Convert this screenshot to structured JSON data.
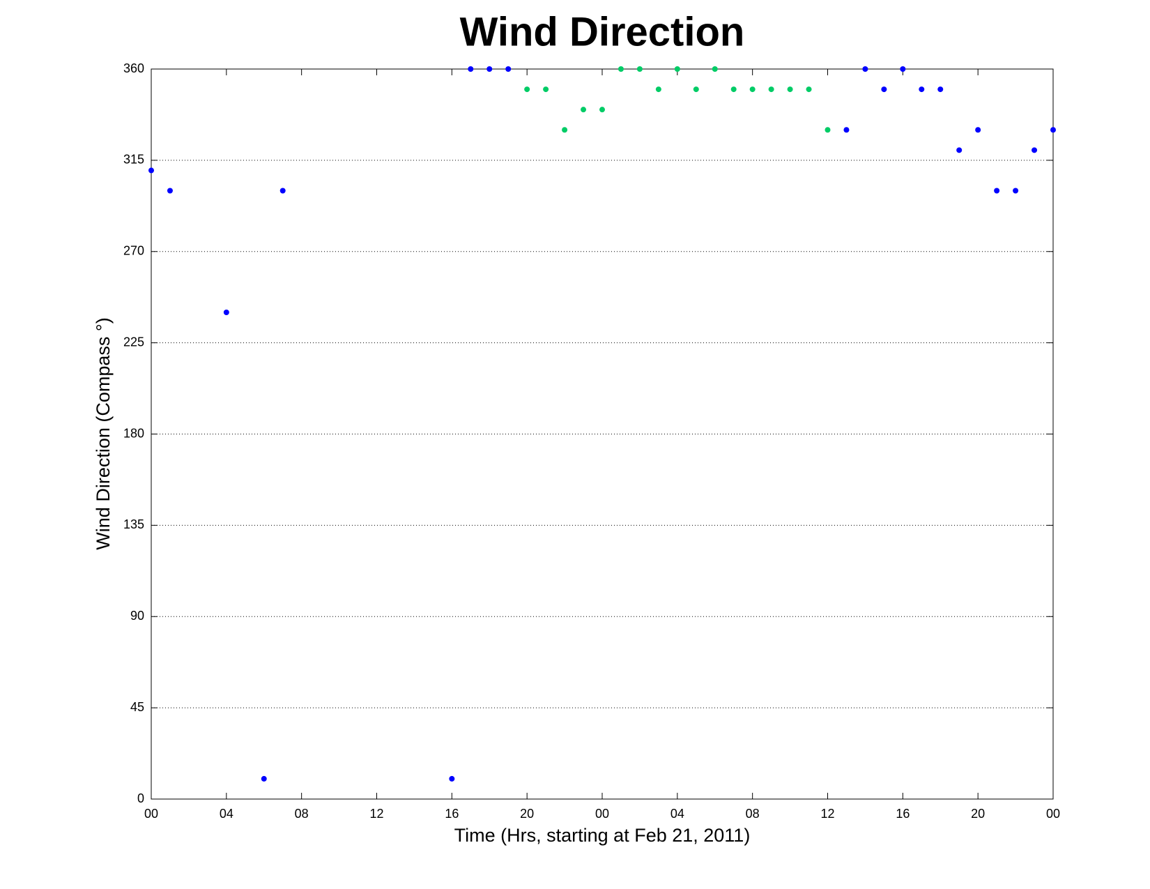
{
  "chart_data": {
    "type": "scatter",
    "title": "Wind Direction",
    "xlabel": "Time (Hrs, starting at Feb 21, 2011)",
    "ylabel": "Wind Direction (Compass °)",
    "xlim": [
      0,
      48
    ],
    "ylim": [
      0,
      360
    ],
    "xticks": [
      {
        "value": 0,
        "label": "00"
      },
      {
        "value": 4,
        "label": "04"
      },
      {
        "value": 8,
        "label": "08"
      },
      12,
      16,
      20,
      {
        "value": 24,
        "label": "00"
      },
      {
        "value": 28,
        "label": "04"
      },
      {
        "value": 32,
        "label": "08"
      },
      {
        "value": 36,
        "label": "12"
      },
      {
        "value": 40,
        "label": "16"
      },
      {
        "value": 44,
        "label": "20"
      },
      {
        "value": 48,
        "label": "00"
      }
    ],
    "yticks": [
      0,
      45,
      90,
      135,
      180,
      225,
      270,
      315,
      360
    ],
    "grid": "y",
    "series": [
      {
        "color": "#0000ff",
        "x": [
          0,
          1,
          4,
          6,
          7,
          16,
          17,
          18,
          19,
          37,
          38,
          39,
          40,
          41,
          42,
          43,
          44,
          45,
          46,
          47,
          48
        ],
        "values": [
          310,
          300,
          240,
          10,
          300,
          10,
          360,
          360,
          360,
          330,
          360,
          350,
          360,
          350,
          350,
          320,
          330,
          300,
          300,
          320,
          330
        ]
      },
      {
        "color": "#00cc66",
        "x": [
          20,
          21,
          22,
          23,
          24,
          25,
          26,
          27,
          28,
          29,
          30,
          31,
          32,
          33,
          34,
          35,
          36
        ],
        "values": [
          350,
          350,
          330,
          340,
          340,
          360,
          360,
          350,
          360,
          350,
          360,
          350,
          350,
          350,
          350,
          350,
          330
        ]
      }
    ]
  }
}
